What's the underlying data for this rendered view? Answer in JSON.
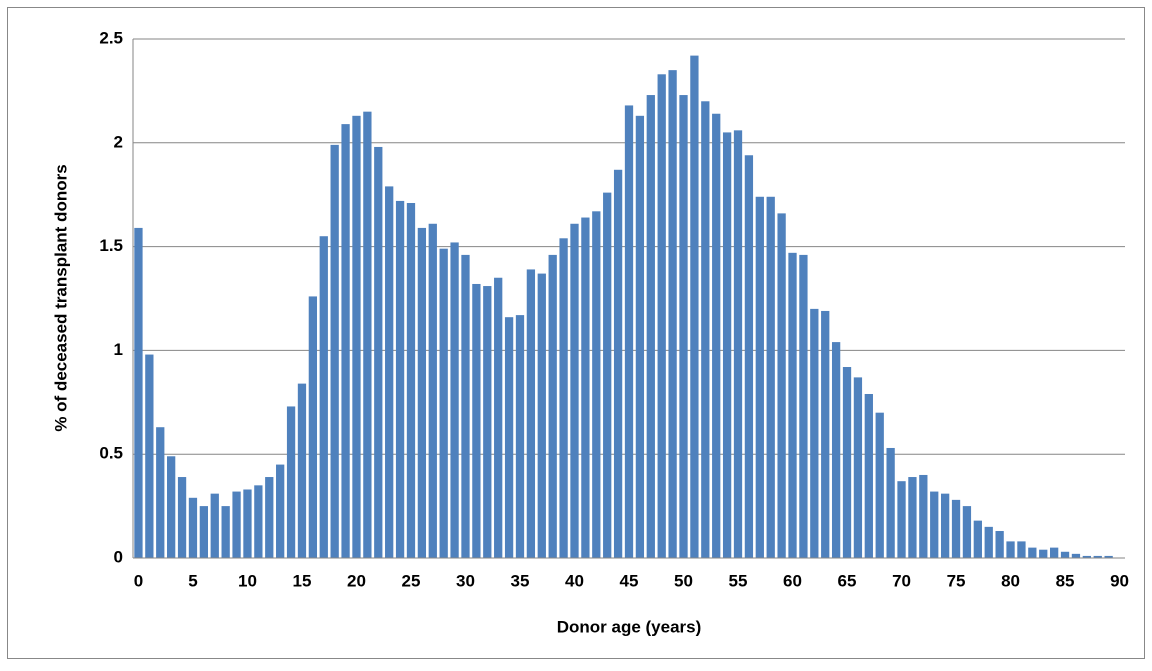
{
  "chart_data": {
    "type": "bar",
    "x_label": "Donor age (years)",
    "y_label": "% of deceased transplant donors",
    "categories": [
      "0",
      null,
      null,
      null,
      null,
      "5",
      null,
      null,
      null,
      null,
      "10",
      null,
      null,
      null,
      null,
      "15",
      null,
      null,
      null,
      null,
      "20",
      null,
      null,
      null,
      null,
      "25",
      null,
      null,
      null,
      null,
      "30",
      null,
      null,
      null,
      null,
      "35",
      null,
      null,
      null,
      null,
      "40",
      null,
      null,
      null,
      null,
      "45",
      null,
      null,
      null,
      null,
      "50",
      null,
      null,
      null,
      null,
      "55",
      null,
      null,
      null,
      null,
      "60",
      null,
      null,
      null,
      null,
      "65",
      null,
      null,
      null,
      null,
      "70",
      null,
      null,
      null,
      null,
      "75",
      null,
      null,
      null,
      null,
      "80",
      null,
      null,
      null,
      null,
      "85",
      null,
      null,
      null,
      null,
      "90"
    ],
    "values": [
      1.59,
      0.98,
      0.63,
      0.49,
      0.39,
      0.29,
      0.25,
      0.31,
      0.25,
      0.32,
      0.33,
      0.35,
      0.39,
      0.45,
      0.73,
      0.84,
      1.26,
      1.55,
      1.99,
      2.09,
      2.13,
      2.15,
      1.98,
      1.79,
      1.72,
      1.71,
      1.59,
      1.61,
      1.49,
      1.52,
      1.46,
      1.32,
      1.31,
      1.35,
      1.16,
      1.17,
      1.39,
      1.37,
      1.46,
      1.54,
      1.61,
      1.64,
      1.67,
      1.76,
      1.87,
      2.18,
      2.13,
      2.23,
      2.33,
      2.35,
      2.23,
      2.42,
      2.2,
      2.14,
      2.05,
      2.06,
      1.94,
      1.74,
      1.74,
      1.66,
      1.47,
      1.46,
      1.2,
      1.19,
      1.04,
      0.92,
      0.87,
      0.79,
      0.7,
      0.53,
      0.37,
      0.39,
      0.4,
      0.32,
      0.31,
      0.28,
      0.25,
      0.18,
      0.15,
      0.13,
      0.08,
      0.08,
      0.05,
      0.04,
      0.05,
      0.03,
      0.02,
      0.01,
      0.01,
      0.01,
      0
    ],
    "color": "#4f81bd",
    "ylim": [
      0,
      2.5
    ],
    "yticks": [
      0,
      0.5,
      1,
      1.5,
      2,
      2.5
    ],
    "grid": true
  }
}
